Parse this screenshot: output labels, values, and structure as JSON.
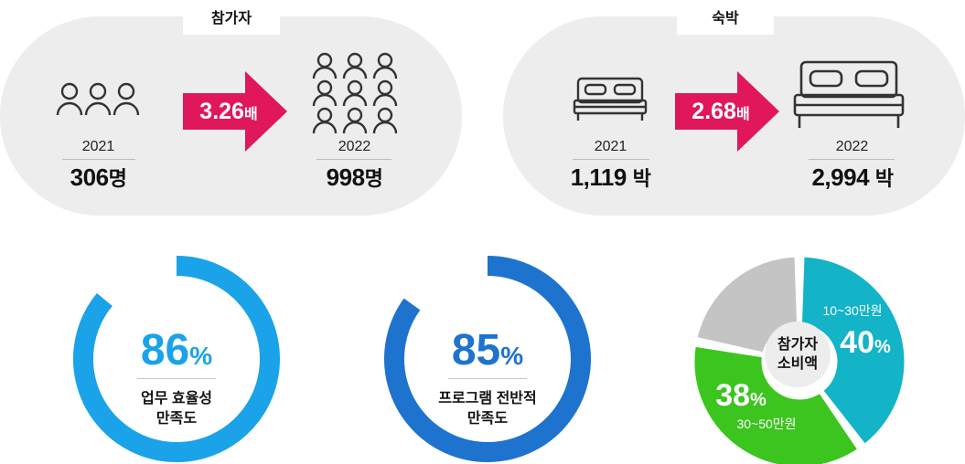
{
  "participants": {
    "tab_label": "참가자",
    "multiplier_value": "3.26",
    "multiplier_unit": "배",
    "before": {
      "year": "2021",
      "value": "306",
      "unit": "명"
    },
    "after": {
      "year": "2022",
      "value": "998",
      "unit": "명"
    },
    "icon_before": "group-of-three-people-icon",
    "icon_after": "crowd-of-people-icon"
  },
  "lodging": {
    "tab_label": "숙박",
    "multiplier_value": "2.68",
    "multiplier_unit": "배",
    "before": {
      "year": "2021",
      "value": "1,119",
      "unit": "박"
    },
    "after": {
      "year": "2022",
      "value": "2,994",
      "unit": "박"
    },
    "icon_before": "small-bed-icon",
    "icon_after": "large-bed-icon"
  },
  "satisfaction": [
    {
      "percent": 86,
      "percent_text": "86",
      "symbol": "%",
      "label_line1": "업무 효율성",
      "label_line2": "만족도",
      "color": "#1aa3e8"
    },
    {
      "percent": 85,
      "percent_text": "85",
      "symbol": "%",
      "label_line1": "프로그램 전반적",
      "label_line2": "만족도",
      "color": "#1e73cf"
    }
  ],
  "chart_data": {
    "type": "pie",
    "center_label_line1": "참가자",
    "center_label_line2": "소비액",
    "slices": [
      {
        "label": "10~30만원",
        "value": 40,
        "value_text": "40",
        "symbol": "%",
        "color": "#13b3c8"
      },
      {
        "label": "30~50만원",
        "value": 38,
        "value_text": "38",
        "symbol": "%",
        "color": "#3cc41f"
      },
      {
        "label": "",
        "value": 22,
        "color": "#c4c4c4"
      }
    ]
  },
  "colors": {
    "arrow": "#e0175a",
    "pill_bg": "#ededed",
    "icon_stroke": "#333333"
  }
}
